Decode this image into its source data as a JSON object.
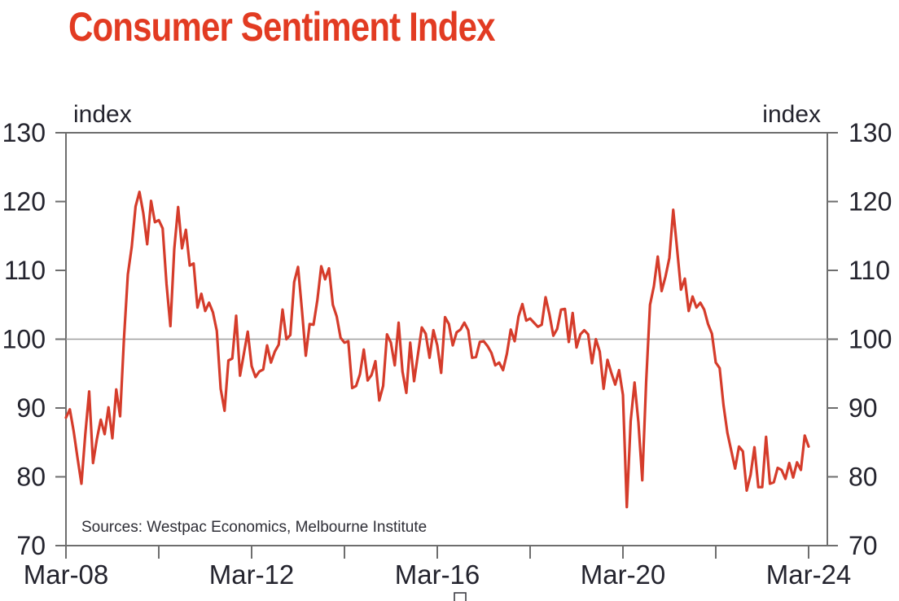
{
  "title": "Consumer Sentiment Index",
  "axis": {
    "y_left_label": "index",
    "y_right_label": "index",
    "y_ticks": [
      70,
      80,
      90,
      100,
      110,
      120,
      130
    ],
    "x_tick_labels": [
      "Mar-08",
      "Mar-12",
      "Mar-16",
      "Mar-20",
      "Mar-24"
    ],
    "x_minor_ticks": [
      "Mar-10",
      "Mar-14",
      "Mar-18",
      "Mar-22"
    ]
  },
  "source_note": "Sources: Westpac Economics, Melbourne Institute",
  "colors": {
    "title": "#e23b22",
    "line": "#d53c2b",
    "axis_text": "#24242e",
    "frame": "#6e6e6e",
    "gridline": "#9e9e9e"
  },
  "chart_data": {
    "type": "line",
    "title": "Consumer Sentiment Index",
    "ylabel": "index",
    "ylim": [
      70,
      130
    ],
    "y_tick_step": 10,
    "gridline_y": 100,
    "grid": "single horizontal line at 100",
    "legend": "none",
    "frequency": "monthly",
    "x_start": "Mar-2008",
    "x_end": "Mar-2024",
    "x_tick_labels": [
      "Mar-08",
      "Mar-12",
      "Mar-16",
      "Mar-20",
      "Mar-24"
    ],
    "line_color": "#d53c2b",
    "series": [
      {
        "name": "Consumer Sentiment Index",
        "values": [
          88.6,
          89.8,
          86.6,
          82.7,
          79.0,
          86.2,
          92.4,
          82.0,
          85.5,
          88.3,
          86.2,
          90.1,
          85.6,
          92.7,
          88.8,
          100.1,
          109.4,
          113.4,
          119.3,
          121.4,
          118.3,
          113.8,
          120.1,
          117.0,
          117.3,
          116.1,
          108.0,
          101.9,
          113.1,
          119.2,
          113.2,
          115.9,
          110.7,
          111.0,
          104.6,
          106.6,
          104.1,
          105.3,
          103.9,
          101.2,
          92.8,
          89.6,
          96.9,
          97.2,
          103.4,
          94.7,
          97.9,
          101.1,
          96.1,
          94.5,
          95.3,
          95.6,
          99.1,
          96.6,
          98.2,
          99.2,
          104.3,
          100.0,
          100.6,
          108.3,
          110.5,
          104.3,
          97.6,
          102.2,
          102.1,
          105.7,
          110.6,
          108.7,
          110.3,
          105.0,
          103.3,
          100.2,
          99.5,
          99.7,
          92.9,
          93.2,
          94.9,
          98.5,
          94.0,
          94.8,
          96.8,
          91.1,
          93.2,
          100.7,
          99.5,
          96.2,
          102.4,
          95.3,
          92.2,
          99.5,
          93.9,
          97.8,
          101.7,
          100.8,
          97.3,
          101.3,
          99.1,
          95.1,
          103.2,
          102.2,
          99.1,
          101.0,
          101.4,
          102.4,
          101.3,
          97.3,
          97.4,
          99.6,
          99.7,
          99.0,
          98.0,
          96.2,
          96.6,
          95.5,
          97.9,
          101.4,
          99.7,
          103.3,
          105.1,
          102.7,
          103.0,
          102.4,
          101.8,
          102.1,
          106.1,
          103.6,
          100.5,
          101.5,
          104.3,
          104.4,
          99.6,
          103.8,
          98.8,
          100.7,
          101.3,
          100.7,
          96.5,
          100.0,
          98.2,
          92.8,
          97.0,
          95.1,
          93.4,
          95.5,
          91.9,
          75.6,
          88.1,
          93.7,
          87.9,
          79.5,
          93.8,
          105.0,
          107.7,
          112.0,
          107.0,
          109.1,
          111.8,
          118.8,
          113.1,
          107.2,
          108.8,
          104.1,
          106.2,
          104.6,
          105.3,
          104.3,
          102.2,
          100.8,
          96.6,
          95.8,
          90.4,
          86.4,
          83.8,
          81.2,
          84.4,
          83.7,
          78.0,
          80.3,
          84.3,
          78.5,
          78.5,
          85.8,
          79.0,
          79.2,
          81.3,
          81.0,
          79.7,
          82.0,
          79.9,
          82.1,
          81.0,
          86.0,
          84.4
        ]
      }
    ]
  }
}
